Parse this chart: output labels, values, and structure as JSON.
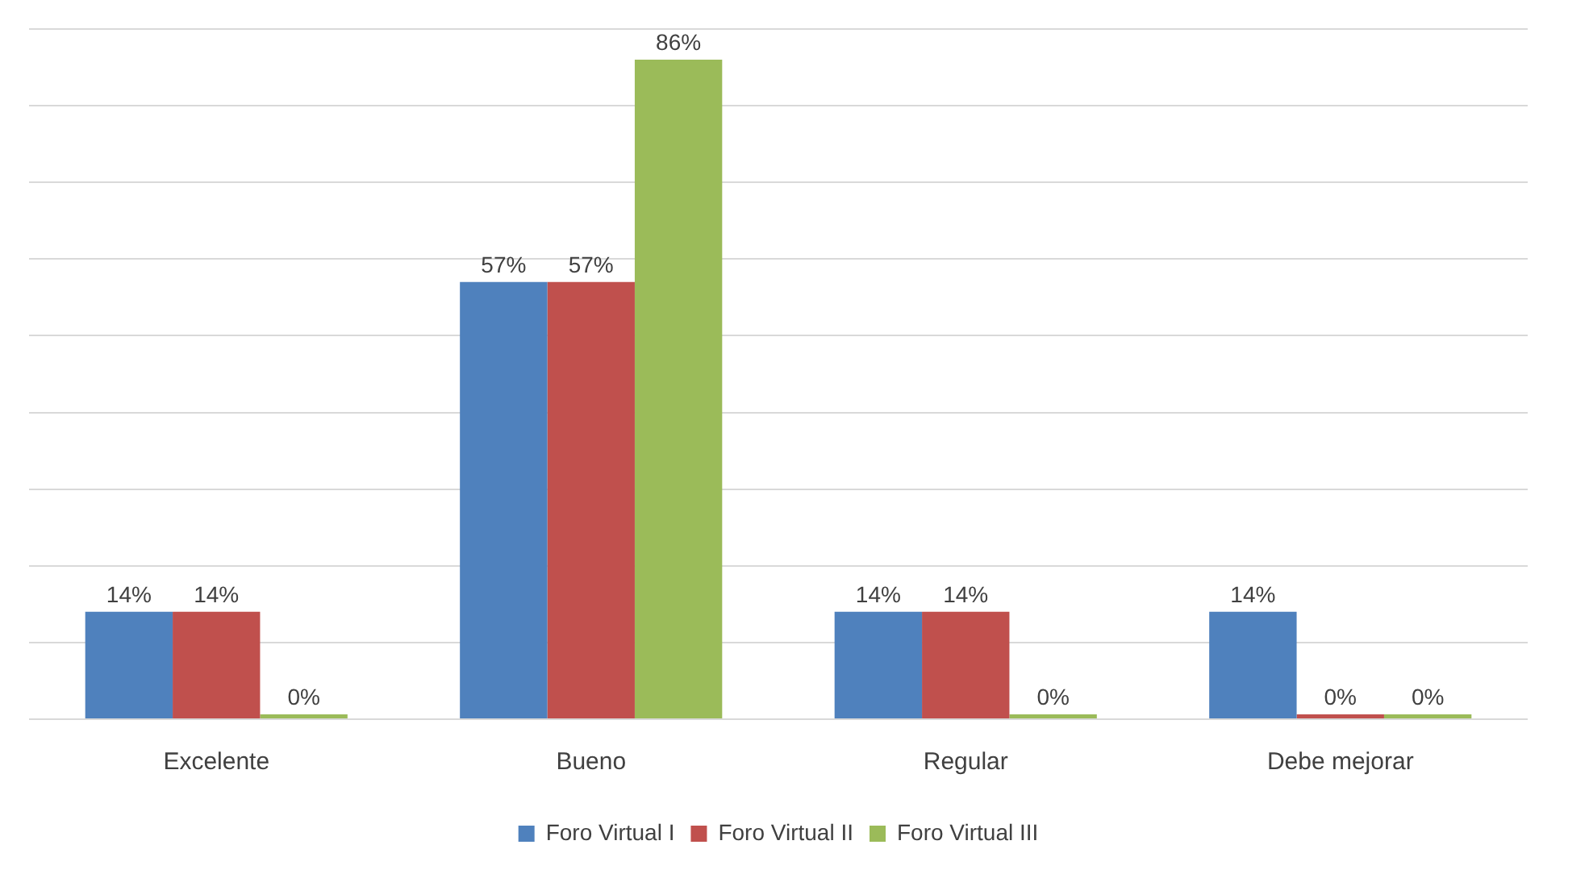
{
  "chart_data": {
    "type": "bar",
    "categories": [
      "Excelente",
      "Bueno",
      "Regular",
      "Debe mejorar"
    ],
    "series": [
      {
        "name": "Foro Virtual I",
        "color": "#4f81bd",
        "values": [
          14,
          57,
          14,
          14
        ],
        "value_labels": [
          "14%",
          "57%",
          "14%",
          "14%"
        ]
      },
      {
        "name": "Foro Virtual II",
        "color": "#c0504d",
        "values": [
          14,
          57,
          14,
          0
        ],
        "value_labels": [
          "14%",
          "57%",
          "14%",
          "0%"
        ]
      },
      {
        "name": "Foro Virtual III",
        "color": "#9bbb59",
        "values": [
          0,
          86,
          0,
          0
        ],
        "value_labels": [
          "0%",
          "86%",
          "0%",
          "0%"
        ]
      }
    ],
    "ylim": [
      0,
      90
    ],
    "yticks": [
      {
        "value": 0,
        "label": null
      },
      {
        "value": 10,
        "label": null
      },
      {
        "value": 20,
        "label": null
      },
      {
        "value": 30,
        "label": null
      },
      {
        "value": 40,
        "label": null
      },
      {
        "value": 50,
        "label": null
      },
      {
        "value": 60,
        "label": null
      },
      {
        "value": 70,
        "label": null
      },
      {
        "value": 80,
        "label": null
      },
      {
        "value": 90,
        "label": null
      }
    ],
    "tick_labels": "x",
    "grid": "y",
    "legend": "bottom"
  }
}
